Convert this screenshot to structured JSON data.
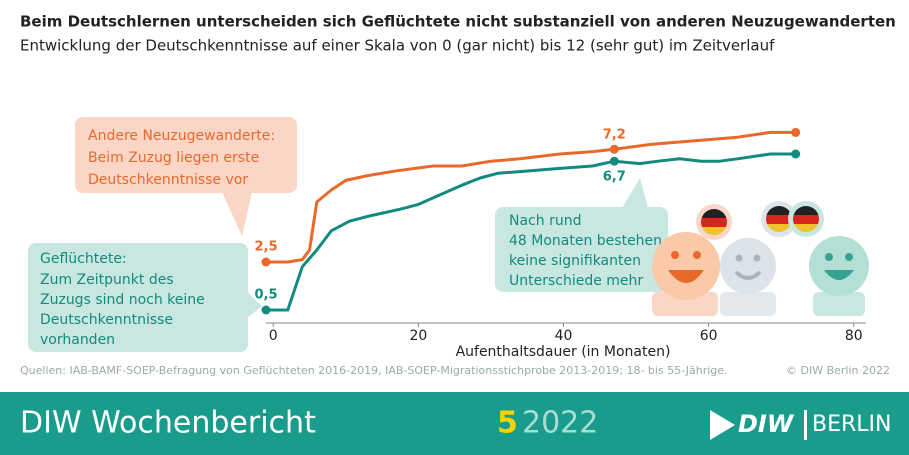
{
  "chart_data": {
    "type": "line",
    "title": "Beim Deutschlernen unterscheiden sich Geflüchtete nicht substanziell von anderen Neuzugewanderten",
    "subtitle": "Entwicklung der Deutschkenntnisse auf einer Skala von 0 (gar nicht) bis 12 (sehr gut) im Zeitverlauf",
    "x_label": "Aufenthaltsdauer (in Monaten)",
    "xlim": [
      -1,
      81
    ],
    "xticks": [
      0,
      20,
      40,
      60,
      80
    ],
    "ylim": [
      0,
      12
    ],
    "series": [
      {
        "name": "Andere Neuzugewanderte:",
        "color": "#e8692a",
        "x": [
          -1,
          2,
          4,
          5,
          6,
          8,
          10,
          13,
          17,
          22,
          26,
          30,
          34,
          39.5,
          44,
          47,
          52,
          56,
          60,
          64,
          68.5,
          72
        ],
        "values": [
          2.5,
          2.5,
          2.6,
          3.0,
          5.0,
          5.5,
          5.9,
          6.1,
          6.3,
          6.5,
          6.5,
          6.7,
          6.8,
          7.0,
          7.1,
          7.2,
          7.4,
          7.5,
          7.6,
          7.7,
          7.9,
          7.9
        ],
        "value_labels": [
          "2,5",
          null,
          null,
          null,
          null,
          null,
          null,
          null,
          null,
          null,
          null,
          null,
          null,
          null,
          null,
          "7,2",
          null,
          null,
          null,
          null,
          null,
          null
        ]
      },
      {
        "name": "Geflüchtete:",
        "color": "#138a7e",
        "x": [
          -1,
          2,
          4,
          6,
          8,
          10.5,
          13,
          17.5,
          20,
          23,
          26,
          28.5,
          31,
          35.5,
          39.5,
          44,
          47,
          50.5,
          53,
          56,
          59,
          61.5,
          64,
          68.5,
          72
        ],
        "values": [
          0.5,
          0.5,
          2.3,
          3.0,
          3.8,
          4.2,
          4.4,
          4.7,
          4.9,
          5.3,
          5.7,
          6.0,
          6.2,
          6.3,
          6.4,
          6.5,
          6.7,
          6.6,
          6.7,
          6.8,
          6.7,
          6.7,
          6.8,
          7.0,
          7.0
        ],
        "value_labels": [
          "0,5",
          null,
          null,
          null,
          null,
          null,
          null,
          null,
          null,
          null,
          null,
          null,
          null,
          null,
          null,
          null,
          "6,7",
          null,
          null,
          null,
          null,
          null,
          null,
          null,
          null
        ]
      }
    ],
    "callouts": [
      {
        "heading": "Andere Neuzugewanderte:",
        "lines": [
          "Beim Zuzug liegen erste",
          "Deutschkenntnisse vor"
        ]
      },
      {
        "heading": "Geflüchtete:",
        "lines": [
          "Zum Zeitpunkt des",
          "Zuzugs sind noch keine",
          "Deutschkenntnisse",
          "vorhanden"
        ]
      },
      {
        "lines": [
          "Nach rund",
          "48 Monaten bestehen",
          "keine signifikanten",
          "Unterschiede mehr"
        ]
      }
    ],
    "source": "Quellen: IAB-BAMF-SOEP-Befragung von Geflüchteten 2016-2019, IAB-SOEP-Migrationsstichprobe 2013-2019; 18- bis 55-Jährige.",
    "copyright": "© DIW Berlin 2022"
  },
  "footer": {
    "publication": "DIW Wochenbericht",
    "issue": "5",
    "year": "2022",
    "logo_left": "DIW",
    "logo_right": "BERLIN"
  }
}
